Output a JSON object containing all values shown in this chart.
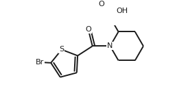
{
  "bg_color": "#ffffff",
  "line_color": "#1a1a1a",
  "line_width": 1.4,
  "fig_width": 2.74,
  "fig_height": 1.52,
  "dpi": 100,
  "font_size": 8.0,
  "xlim": [
    0,
    274
  ],
  "ylim": [
    0,
    152
  ]
}
